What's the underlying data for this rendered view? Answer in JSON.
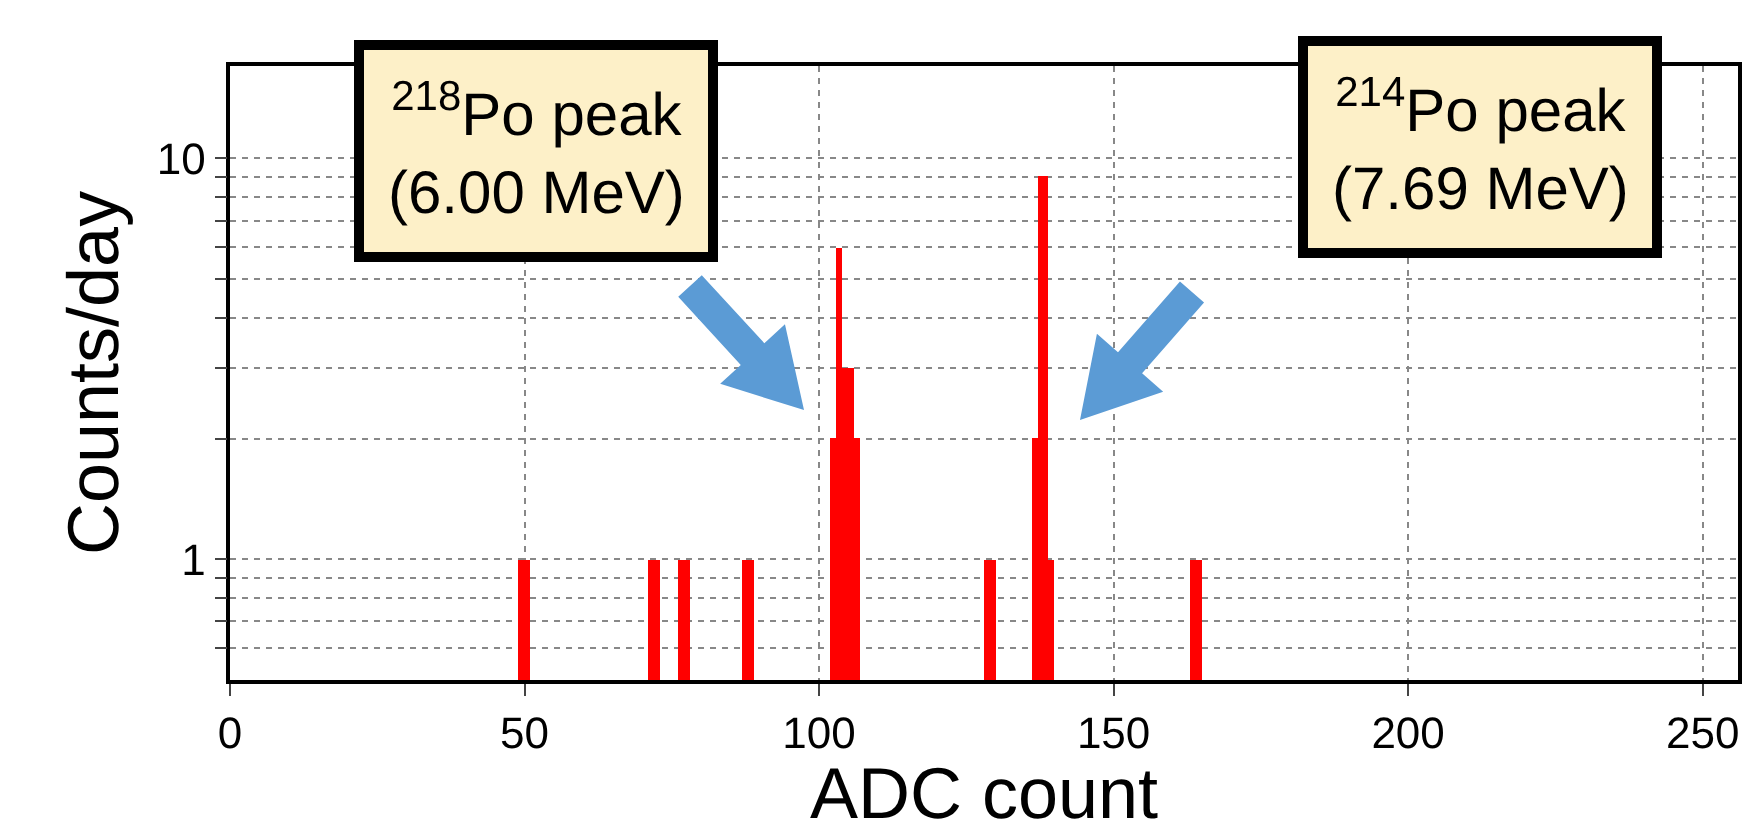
{
  "chart_data": {
    "type": "histogram",
    "xlabel": "ADC count",
    "ylabel": "Counts/day",
    "bins": [
      49,
      51,
      71,
      73,
      76,
      78,
      87,
      89,
      102,
      103,
      104,
      106,
      107,
      128,
      130,
      136,
      137,
      139,
      140,
      163,
      165
    ],
    "values": [
      1,
      null,
      1,
      null,
      1,
      null,
      1,
      null,
      2,
      6,
      3,
      2,
      null,
      1,
      null,
      2,
      9,
      1,
      null,
      1
    ],
    "color": "#ff0000",
    "log": "y",
    "xlim": [
      0,
      256
    ],
    "ylim": [
      0.5,
      17
    ],
    "xticks": [
      0,
      50,
      100,
      150,
      200,
      250
    ],
    "yticks": [
      {
        "value": 0.6,
        "label": null
      },
      {
        "value": 0.7,
        "label": null
      },
      {
        "value": 0.8,
        "label": null
      },
      {
        "value": 0.9,
        "label": null
      },
      1,
      {
        "value": 2,
        "label": null
      },
      {
        "value": 3,
        "label": null
      },
      {
        "value": 4,
        "label": null
      },
      {
        "value": 5,
        "label": null
      },
      {
        "value": 6,
        "label": null
      },
      {
        "value": 7,
        "label": null
      },
      {
        "value": 8,
        "label": null
      },
      {
        "value": 9,
        "label": null
      },
      10
    ],
    "grid": true,
    "annotations": [
      "$^{218}$Po peak\n(6.00 MeV)",
      "$^{214}$Po peak\n(7.69 MeV)"
    ]
  }
}
